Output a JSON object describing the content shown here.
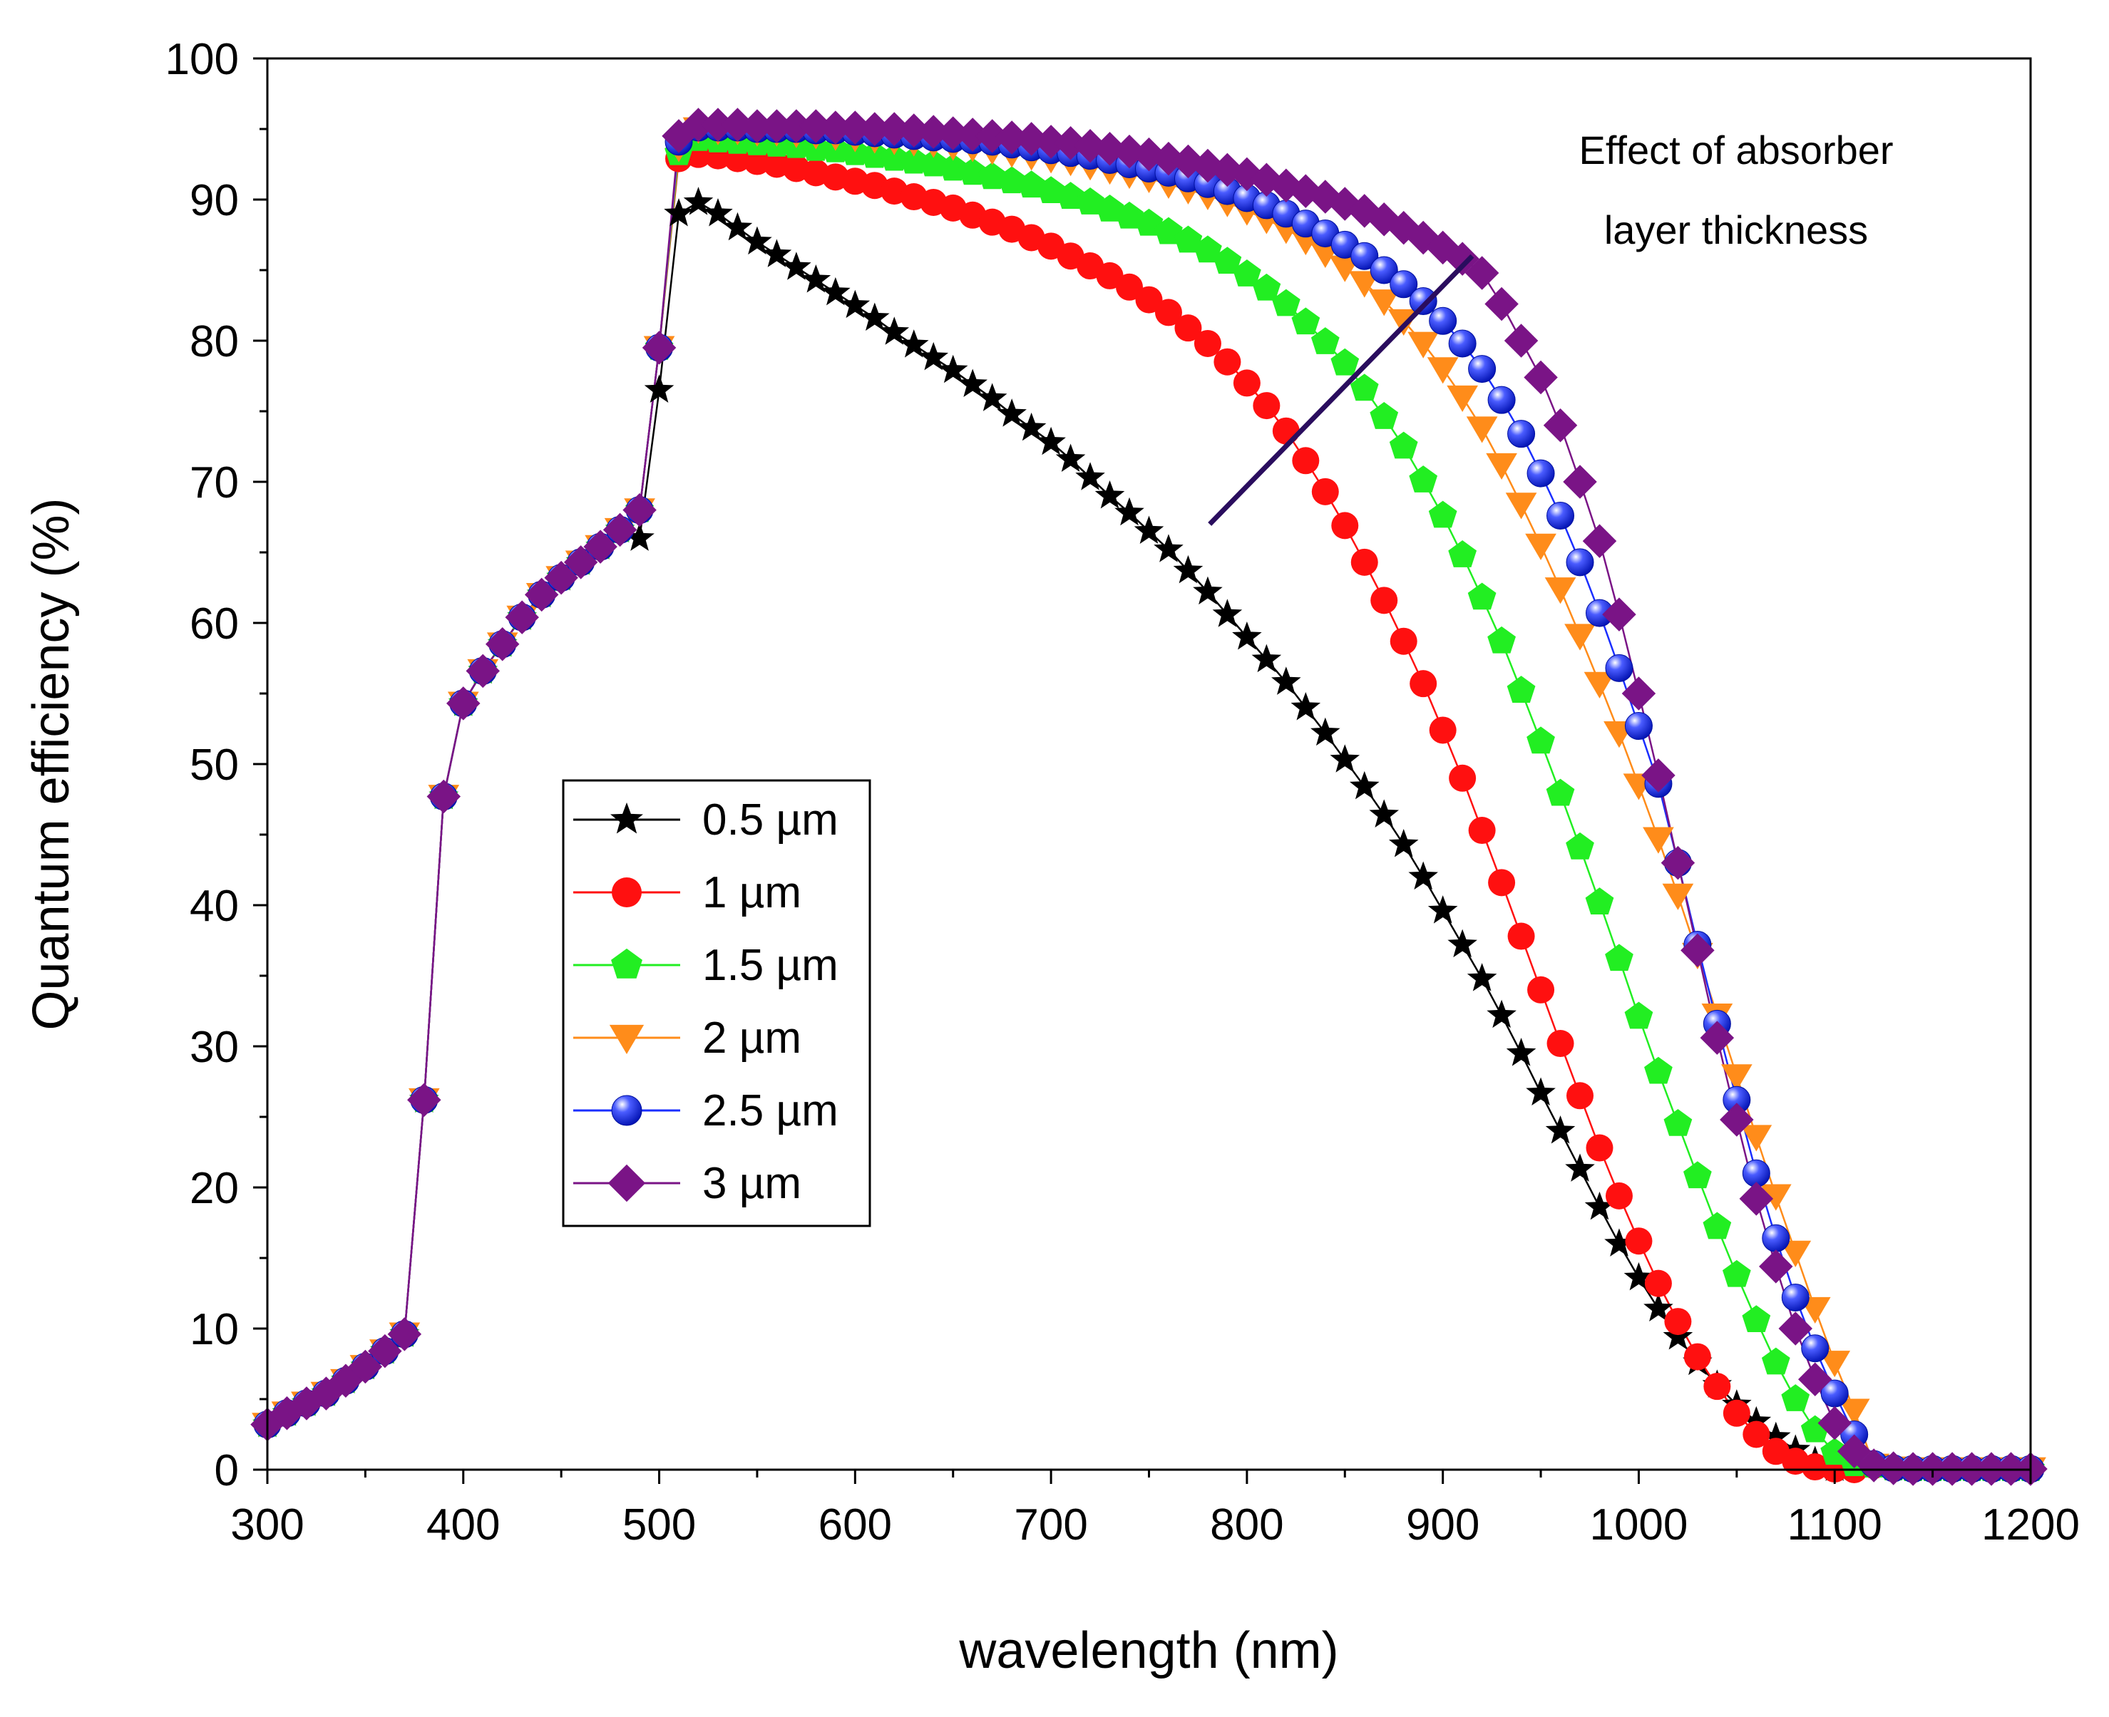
{
  "chart_data": {
    "type": "line",
    "title": "",
    "xlabel": "wavelength (nm)",
    "ylabel": "Quantum efficiency (%)",
    "xlim": [
      300,
      1200
    ],
    "ylim": [
      0,
      100
    ],
    "xticks": [
      300,
      400,
      500,
      600,
      700,
      800,
      900,
      1000,
      1100,
      1200
    ],
    "yticks": [
      0,
      10,
      20,
      30,
      40,
      50,
      60,
      70,
      80,
      90,
      100
    ],
    "grid": false,
    "legend_position": "center-left",
    "annotation": {
      "lines": [
        "Effect of absorber",
        "layer thickness"
      ],
      "arrow_from": [
        781,
        67
      ],
      "arrow_to": [
        915,
        86
      ]
    },
    "shared_x": [
      300,
      310,
      320,
      330,
      340,
      350,
      360,
      370,
      380,
      390,
      400,
      410,
      420,
      430,
      440,
      450,
      460,
      470,
      480,
      490,
      500,
      510
    ],
    "shared_y": [
      3.2,
      4.0,
      4.7,
      5.4,
      6.3,
      7.3,
      8.4,
      9.6,
      26.2,
      47.7,
      54.3,
      56.6,
      58.5,
      60.4,
      62.0,
      63.2,
      64.3,
      65.4,
      66.6,
      68.0,
      79.5,
      93.5
    ],
    "series": [
      {
        "name": "0.5 µm",
        "color": "#000000",
        "marker": "star",
        "x": [
          300,
          310,
          320,
          330,
          340,
          350,
          360,
          370,
          380,
          390,
          400,
          410,
          420,
          430,
          440,
          450,
          460,
          470,
          480,
          490,
          500,
          510,
          520,
          530,
          540,
          550,
          560,
          570,
          580,
          590,
          600,
          610,
          620,
          630,
          640,
          650,
          660,
          670,
          680,
          690,
          700,
          710,
          720,
          730,
          740,
          750,
          760,
          770,
          780,
          790,
          800,
          810,
          820,
          830,
          840,
          850,
          860,
          870,
          880,
          890,
          900,
          910,
          920,
          930,
          940,
          950,
          960,
          970,
          980,
          990,
          1000,
          1010,
          1020,
          1030,
          1040,
          1050,
          1060,
          1070,
          1080,
          1090,
          1100
        ],
        "y": [
          3.2,
          4.0,
          4.7,
          5.4,
          6.3,
          7.3,
          8.4,
          9.6,
          26.2,
          47.7,
          54.3,
          56.6,
          58.5,
          60.4,
          62.0,
          63.2,
          64.3,
          65.4,
          66.6,
          66.0,
          76.5,
          89.0,
          89.8,
          89.0,
          88.0,
          87.0,
          86.1,
          85.2,
          84.3,
          83.4,
          82.5,
          81.6,
          80.6,
          79.7,
          78.8,
          77.9,
          76.9,
          75.9,
          74.8,
          73.8,
          72.8,
          71.6,
          70.3,
          69.0,
          67.8,
          66.5,
          65.2,
          63.7,
          62.2,
          60.6,
          59.0,
          57.4,
          55.8,
          54.0,
          52.2,
          50.3,
          48.4,
          46.4,
          44.3,
          42.0,
          39.6,
          37.2,
          34.8,
          32.2,
          29.5,
          26.7,
          24.0,
          21.3,
          18.6,
          16.0,
          13.6,
          11.4,
          9.4,
          7.6,
          6.0,
          4.6,
          3.4,
          2.3,
          1.4,
          0.6,
          0.1
        ]
      },
      {
        "name": "1 µm",
        "color": "#ff1010",
        "marker": "circle",
        "x": [
          520,
          530,
          540,
          550,
          560,
          570,
          580,
          590,
          600,
          610,
          620,
          630,
          640,
          650,
          660,
          670,
          680,
          690,
          700,
          710,
          720,
          730,
          740,
          750,
          760,
          770,
          780,
          790,
          800,
          810,
          820,
          830,
          840,
          850,
          860,
          870,
          880,
          890,
          900,
          910,
          920,
          930,
          940,
          950,
          960,
          970,
          980,
          990,
          1000,
          1010,
          1020,
          1030,
          1040,
          1050,
          1060,
          1070,
          1080,
          1090,
          1100,
          1110
        ],
        "y": [
          93.2,
          93.1,
          92.9,
          92.7,
          92.5,
          92.2,
          91.9,
          91.6,
          91.3,
          91.0,
          90.6,
          90.2,
          89.8,
          89.4,
          88.9,
          88.4,
          87.9,
          87.3,
          86.7,
          86.0,
          85.3,
          84.6,
          83.8,
          82.9,
          82.0,
          80.9,
          79.8,
          78.5,
          77.0,
          75.4,
          73.6,
          71.5,
          69.3,
          66.9,
          64.3,
          61.6,
          58.7,
          55.7,
          52.4,
          49.0,
          45.3,
          41.6,
          37.8,
          34.0,
          30.2,
          26.5,
          22.8,
          19.4,
          16.2,
          13.2,
          10.5,
          8.0,
          5.9,
          4.0,
          2.5,
          1.3,
          0.6,
          0.2,
          0.05,
          0.0
        ]
      },
      {
        "name": "1.5 µm",
        "color": "#22ee22",
        "marker": "pentagon",
        "x": [
          520,
          530,
          540,
          550,
          560,
          570,
          580,
          590,
          600,
          610,
          620,
          630,
          640,
          650,
          660,
          670,
          680,
          690,
          700,
          710,
          720,
          730,
          740,
          750,
          760,
          770,
          780,
          790,
          800,
          810,
          820,
          830,
          840,
          850,
          860,
          870,
          880,
          890,
          900,
          910,
          920,
          930,
          940,
          950,
          960,
          970,
          980,
          990,
          1000,
          1010,
          1020,
          1030,
          1040,
          1050,
          1060,
          1070,
          1080,
          1090,
          1100,
          1110
        ],
        "y": [
          94.3,
          94.2,
          94.1,
          94.0,
          93.9,
          93.8,
          93.6,
          93.5,
          93.3,
          93.1,
          92.9,
          92.7,
          92.5,
          92.2,
          91.9,
          91.6,
          91.3,
          91.0,
          90.6,
          90.2,
          89.8,
          89.3,
          88.8,
          88.3,
          87.7,
          87.1,
          86.4,
          85.6,
          84.7,
          83.7,
          82.6,
          81.3,
          79.9,
          78.4,
          76.6,
          74.6,
          72.5,
          70.1,
          67.6,
          64.8,
          61.8,
          58.7,
          55.2,
          51.6,
          47.9,
          44.1,
          40.2,
          36.2,
          32.1,
          28.2,
          24.5,
          20.8,
          17.2,
          13.8,
          10.6,
          7.6,
          5.0,
          2.8,
          1.2,
          0.4
        ]
      },
      {
        "name": "2 µm",
        "color": "#ff8c1a",
        "marker": "triangle-down",
        "x": [
          520,
          530,
          540,
          550,
          560,
          570,
          580,
          590,
          600,
          610,
          620,
          630,
          640,
          650,
          660,
          670,
          680,
          690,
          700,
          710,
          720,
          730,
          740,
          750,
          760,
          770,
          780,
          790,
          800,
          810,
          820,
          830,
          840,
          850,
          860,
          870,
          880,
          890,
          900,
          910,
          920,
          930,
          940,
          950,
          960,
          970,
          980,
          990,
          1000,
          1010,
          1020,
          1030,
          1040,
          1050,
          1060,
          1070,
          1080,
          1090,
          1100,
          1110
        ],
        "y": [
          95.0,
          94.9,
          94.9,
          94.8,
          94.8,
          94.7,
          94.6,
          94.5,
          94.4,
          94.3,
          94.2,
          94.1,
          94.0,
          93.8,
          93.7,
          93.5,
          93.3,
          93.1,
          92.9,
          92.7,
          92.4,
          92.1,
          91.8,
          91.5,
          91.1,
          90.7,
          90.3,
          89.8,
          89.2,
          88.6,
          87.9,
          87.1,
          86.2,
          85.2,
          84.1,
          82.8,
          81.4,
          79.8,
          78.0,
          76.0,
          73.8,
          71.2,
          68.4,
          65.5,
          62.4,
          59.1,
          55.7,
          52.2,
          48.5,
          44.7,
          40.7,
          36.5,
          32.2,
          27.9,
          23.6,
          19.4,
          15.4,
          11.4,
          7.6,
          4.2
        ]
      },
      {
        "name": "2.5 µm",
        "color": "#1a2eff",
        "marker": "sphere",
        "x": [
          520,
          530,
          540,
          550,
          560,
          570,
          580,
          590,
          600,
          610,
          620,
          630,
          640,
          650,
          660,
          670,
          680,
          690,
          700,
          710,
          720,
          730,
          740,
          750,
          760,
          770,
          780,
          790,
          800,
          810,
          820,
          830,
          840,
          850,
          860,
          870,
          880,
          890,
          900,
          910,
          920,
          930,
          940,
          950,
          960,
          970,
          980,
          990,
          1000,
          1010,
          1020,
          1030,
          1040,
          1050,
          1060,
          1070,
          1080,
          1090,
          1100,
          1110,
          1120
        ],
        "y": [
          95.1,
          95.1,
          95.1,
          95.0,
          95.0,
          95.0,
          94.9,
          94.9,
          94.8,
          94.7,
          94.6,
          94.5,
          94.4,
          94.3,
          94.2,
          94.1,
          93.9,
          93.7,
          93.5,
          93.3,
          93.1,
          92.8,
          92.5,
          92.2,
          91.9,
          91.5,
          91.1,
          90.6,
          90.1,
          89.6,
          89.0,
          88.3,
          87.6,
          86.8,
          86.0,
          85.0,
          84.0,
          82.8,
          81.4,
          79.8,
          78.0,
          75.8,
          73.4,
          70.6,
          67.6,
          64.3,
          60.7,
          56.8,
          52.7,
          48.6,
          43.0,
          37.2,
          31.6,
          26.2,
          21.0,
          16.4,
          12.2,
          8.6,
          5.4,
          2.5,
          0.4
        ]
      },
      {
        "name": "3 µm",
        "color": "#7a1486",
        "marker": "diamond",
        "x": [
          520,
          530,
          540,
          550,
          560,
          570,
          580,
          590,
          600,
          610,
          620,
          630,
          640,
          650,
          660,
          670,
          680,
          690,
          700,
          710,
          720,
          730,
          740,
          750,
          760,
          770,
          780,
          790,
          800,
          810,
          820,
          830,
          840,
          850,
          860,
          870,
          880,
          890,
          900,
          910,
          920,
          930,
          940,
          950,
          960,
          970,
          980,
          990,
          1000,
          1010,
          1020,
          1030,
          1040,
          1050,
          1060,
          1070,
          1080,
          1090,
          1100,
          1110,
          1120
        ],
        "y": [
          95.3,
          95.3,
          95.3,
          95.2,
          95.2,
          95.2,
          95.2,
          95.1,
          95.1,
          95.0,
          95.0,
          94.9,
          94.8,
          94.7,
          94.6,
          94.5,
          94.4,
          94.3,
          94.1,
          94.0,
          93.8,
          93.6,
          93.4,
          93.2,
          92.9,
          92.7,
          92.4,
          92.1,
          91.8,
          91.4,
          91.0,
          90.6,
          90.2,
          89.7,
          89.2,
          88.6,
          88.0,
          87.3,
          86.6,
          85.8,
          84.8,
          82.6,
          80.0,
          77.4,
          74.0,
          70.0,
          65.8,
          60.6,
          55.0,
          49.2,
          43.0,
          36.8,
          30.6,
          24.8,
          19.2,
          14.4,
          10.0,
          6.4,
          3.3,
          1.3,
          0.3
        ]
      }
    ],
    "tail": {
      "x": [
        1120,
        1130,
        1140,
        1150,
        1160,
        1170,
        1180,
        1190,
        1200
      ],
      "y": [
        0.3,
        0.1,
        0.05,
        0.05,
        0.05,
        0.05,
        0.05,
        0.05,
        0.05
      ]
    }
  }
}
